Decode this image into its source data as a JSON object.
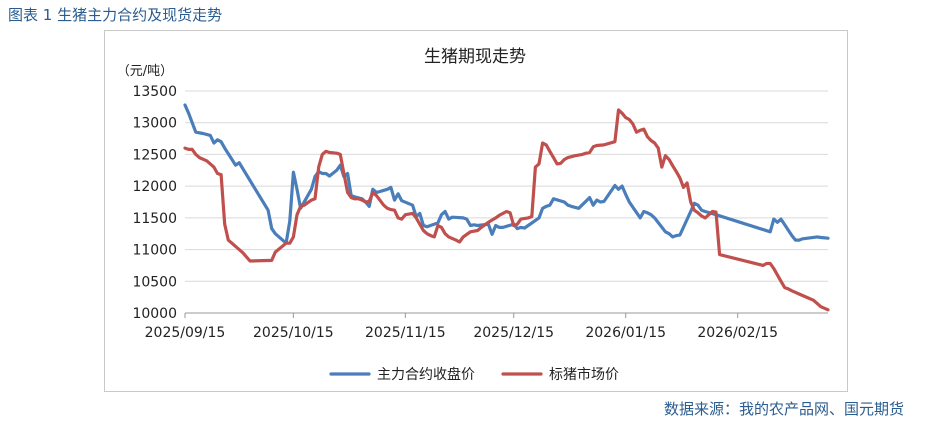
{
  "figure_title": "图表 1 生猪主力合约及现货走势",
  "source": "数据来源：我的农产品网、国元期货",
  "chart_data": {
    "type": "line",
    "title": "生猪期现走势",
    "ylabel": "（元/吨）",
    "xlabel": "",
    "ylim": [
      10000,
      13500
    ],
    "yticks": [
      10000,
      10500,
      11000,
      11500,
      12000,
      12500,
      13000,
      13500
    ],
    "xlim": [
      "2025-09-15",
      "2026-03-12"
    ],
    "xticks": [
      "2025/09/15",
      "2025/10/15",
      "2025/11/15",
      "2025/12/15",
      "2026/01/15",
      "2026/02/15"
    ],
    "grid": "horizontal",
    "legend_position": "bottom",
    "series": [
      {
        "name": "主力合约收盘价",
        "color": "#4a7ebb",
        "points": [
          [
            "2025-09-15",
            13280
          ],
          [
            "2025-09-16",
            13150
          ],
          [
            "2025-09-18",
            12850
          ],
          [
            "2025-09-20",
            12830
          ],
          [
            "2025-09-22",
            12800
          ],
          [
            "2025-09-23",
            12680
          ],
          [
            "2025-09-24",
            12730
          ],
          [
            "2025-09-25",
            12700
          ],
          [
            "2025-09-26",
            12600
          ],
          [
            "2025-09-29",
            12330
          ],
          [
            "2025-09-30",
            12370
          ],
          [
            "2025-10-08",
            11620
          ],
          [
            "2025-10-09",
            11330
          ],
          [
            "2025-10-10",
            11250
          ],
          [
            "2025-10-13",
            11100
          ],
          [
            "2025-10-14",
            11450
          ],
          [
            "2025-10-15",
            12220
          ],
          [
            "2025-10-16",
            11950
          ],
          [
            "2025-10-17",
            11650
          ],
          [
            "2025-10-20",
            11950
          ],
          [
            "2025-10-21",
            12150
          ],
          [
            "2025-10-22",
            12230
          ],
          [
            "2025-10-23",
            12200
          ],
          [
            "2025-10-24",
            12200
          ],
          [
            "2025-10-25",
            12160
          ],
          [
            "2025-10-27",
            12250
          ],
          [
            "2025-10-28",
            12330
          ],
          [
            "2025-10-29",
            12150
          ],
          [
            "2025-10-30",
            12200
          ],
          [
            "2025-10-31",
            11850
          ],
          [
            "2025-11-01",
            11830
          ],
          [
            "2025-11-03",
            11800
          ],
          [
            "2025-11-04",
            11750
          ],
          [
            "2025-11-05",
            11680
          ],
          [
            "2025-11-06",
            11950
          ],
          [
            "2025-11-07",
            11900
          ],
          [
            "2025-11-10",
            11950
          ],
          [
            "2025-11-11",
            11980
          ],
          [
            "2025-11-12",
            11780
          ],
          [
            "2025-11-13",
            11880
          ],
          [
            "2025-11-14",
            11770
          ],
          [
            "2025-11-17",
            11700
          ],
          [
            "2025-11-18",
            11520
          ],
          [
            "2025-11-19",
            11570
          ],
          [
            "2025-11-20",
            11380
          ],
          [
            "2025-11-21",
            11360
          ],
          [
            "2025-11-24",
            11420
          ],
          [
            "2025-11-25",
            11550
          ],
          [
            "2025-11-26",
            11600
          ],
          [
            "2025-11-27",
            11480
          ],
          [
            "2025-11-28",
            11510
          ],
          [
            "2025-12-01",
            11500
          ],
          [
            "2025-12-02",
            11480
          ],
          [
            "2025-12-03",
            11380
          ],
          [
            "2025-12-04",
            11390
          ],
          [
            "2025-12-05",
            11380
          ],
          [
            "2025-12-08",
            11400
          ],
          [
            "2025-12-09",
            11240
          ],
          [
            "2025-12-10",
            11380
          ],
          [
            "2025-12-11",
            11350
          ],
          [
            "2025-12-12",
            11350
          ],
          [
            "2025-12-15",
            11400
          ],
          [
            "2025-12-16",
            11330
          ],
          [
            "2025-12-17",
            11350
          ],
          [
            "2025-12-18",
            11340
          ],
          [
            "2025-12-19",
            11380
          ],
          [
            "2025-12-22",
            11500
          ],
          [
            "2025-12-23",
            11650
          ],
          [
            "2025-12-24",
            11680
          ],
          [
            "2025-12-25",
            11700
          ],
          [
            "2025-12-26",
            11800
          ],
          [
            "2025-12-29",
            11750
          ],
          [
            "2025-12-30",
            11700
          ],
          [
            "2025-12-31",
            11680
          ],
          [
            "2026-01-02",
            11650
          ],
          [
            "2026-01-05",
            11820
          ],
          [
            "2026-01-06",
            11700
          ],
          [
            "2026-01-07",
            11780
          ],
          [
            "2026-01-08",
            11750
          ],
          [
            "2026-01-09",
            11760
          ],
          [
            "2026-01-12",
            12010
          ],
          [
            "2026-01-13",
            11950
          ],
          [
            "2026-01-14",
            12000
          ],
          [
            "2026-01-15",
            11870
          ],
          [
            "2026-01-16",
            11750
          ],
          [
            "2026-01-19",
            11500
          ],
          [
            "2026-01-20",
            11600
          ],
          [
            "2026-01-21",
            11580
          ],
          [
            "2026-01-22",
            11550
          ],
          [
            "2026-01-23",
            11500
          ],
          [
            "2026-01-26",
            11280
          ],
          [
            "2026-01-27",
            11250
          ],
          [
            "2026-01-28",
            11200
          ],
          [
            "2026-01-29",
            11220
          ],
          [
            "2026-01-30",
            11230
          ],
          [
            "2026-02-02",
            11600
          ],
          [
            "2026-02-03",
            11730
          ],
          [
            "2026-02-04",
            11700
          ],
          [
            "2026-02-05",
            11620
          ],
          [
            "2026-02-06",
            11600
          ],
          [
            "2026-02-09",
            11550
          ],
          [
            "2026-02-24",
            11280
          ],
          [
            "2026-02-25",
            11480
          ],
          [
            "2026-02-26",
            11430
          ],
          [
            "2026-02-27",
            11480
          ],
          [
            "2026-03-02",
            11220
          ],
          [
            "2026-03-03",
            11150
          ],
          [
            "2026-03-04",
            11150
          ],
          [
            "2026-03-05",
            11170
          ],
          [
            "2026-03-09",
            11200
          ],
          [
            "2026-03-10",
            11190
          ],
          [
            "2026-03-12",
            11180
          ]
        ]
      },
      {
        "name": "标猪市场价",
        "color": "#c0504d",
        "points": [
          [
            "2025-09-15",
            12600
          ],
          [
            "2025-09-16",
            12580
          ],
          [
            "2025-09-17",
            12580
          ],
          [
            "2025-09-18",
            12500
          ],
          [
            "2025-09-19",
            12450
          ],
          [
            "2025-09-21",
            12400
          ],
          [
            "2025-09-23",
            12300
          ],
          [
            "2025-09-24",
            12200
          ],
          [
            "2025-09-25",
            12180
          ],
          [
            "2025-09-26",
            11400
          ],
          [
            "2025-09-27",
            11150
          ],
          [
            "2025-09-30",
            11000
          ],
          [
            "2025-10-01",
            10950
          ],
          [
            "2025-10-03",
            10820
          ],
          [
            "2025-10-09",
            10830
          ],
          [
            "2025-10-10",
            10960
          ],
          [
            "2025-10-13",
            11100
          ],
          [
            "2025-10-14",
            11100
          ],
          [
            "2025-10-15",
            11200
          ],
          [
            "2025-10-16",
            11550
          ],
          [
            "2025-10-17",
            11680
          ],
          [
            "2025-10-18",
            11700
          ],
          [
            "2025-10-20",
            11780
          ],
          [
            "2025-10-21",
            11800
          ],
          [
            "2025-10-22",
            12300
          ],
          [
            "2025-10-23",
            12500
          ],
          [
            "2025-10-24",
            12550
          ],
          [
            "2025-10-25",
            12530
          ],
          [
            "2025-10-27",
            12520
          ],
          [
            "2025-10-28",
            12500
          ],
          [
            "2025-10-29",
            12200
          ],
          [
            "2025-10-30",
            11900
          ],
          [
            "2025-10-31",
            11820
          ],
          [
            "2025-11-01",
            11800
          ],
          [
            "2025-11-02",
            11800
          ],
          [
            "2025-11-03",
            11780
          ],
          [
            "2025-11-04",
            11750
          ],
          [
            "2025-11-05",
            11760
          ],
          [
            "2025-11-06",
            11900
          ],
          [
            "2025-11-07",
            11850
          ],
          [
            "2025-11-09",
            11700
          ],
          [
            "2025-11-10",
            11650
          ],
          [
            "2025-11-11",
            11630
          ],
          [
            "2025-11-12",
            11620
          ],
          [
            "2025-11-13",
            11500
          ],
          [
            "2025-11-14",
            11480
          ],
          [
            "2025-11-15",
            11550
          ],
          [
            "2025-11-17",
            11570
          ],
          [
            "2025-11-18",
            11500
          ],
          [
            "2025-11-20",
            11300
          ],
          [
            "2025-11-21",
            11250
          ],
          [
            "2025-11-22",
            11220
          ],
          [
            "2025-11-23",
            11200
          ],
          [
            "2025-11-24",
            11380
          ],
          [
            "2025-11-25",
            11350
          ],
          [
            "2025-11-26",
            11250
          ],
          [
            "2025-11-27",
            11200
          ],
          [
            "2025-11-29",
            11150
          ],
          [
            "2025-11-30",
            11120
          ],
          [
            "2025-12-01",
            11200
          ],
          [
            "2025-12-03",
            11280
          ],
          [
            "2025-12-05",
            11300
          ],
          [
            "2025-12-06",
            11350
          ],
          [
            "2025-12-08",
            11430
          ],
          [
            "2025-12-10",
            11500
          ],
          [
            "2025-12-11",
            11540
          ],
          [
            "2025-12-13",
            11600
          ],
          [
            "2025-12-14",
            11580
          ],
          [
            "2025-12-15",
            11380
          ],
          [
            "2025-12-16",
            11400
          ],
          [
            "2025-12-17",
            11480
          ],
          [
            "2025-12-19",
            11500
          ],
          [
            "2025-12-20",
            11520
          ],
          [
            "2025-12-21",
            12300
          ],
          [
            "2025-12-22",
            12350
          ],
          [
            "2025-12-23",
            12680
          ],
          [
            "2025-12-24",
            12650
          ],
          [
            "2025-12-25",
            12550
          ],
          [
            "2025-12-26",
            12450
          ],
          [
            "2025-12-27",
            12350
          ],
          [
            "2025-12-28",
            12360
          ],
          [
            "2025-12-29",
            12420
          ],
          [
            "2025-12-30",
            12450
          ],
          [
            "2026-01-01",
            12480
          ],
          [
            "2026-01-03",
            12500
          ],
          [
            "2026-01-04",
            12520
          ],
          [
            "2026-01-05",
            12530
          ],
          [
            "2026-01-06",
            12620
          ],
          [
            "2026-01-07",
            12640
          ],
          [
            "2026-01-09",
            12650
          ],
          [
            "2026-01-12",
            12700
          ],
          [
            "2026-01-13",
            13200
          ],
          [
            "2026-01-14",
            13150
          ],
          [
            "2026-01-15",
            13080
          ],
          [
            "2026-01-16",
            13050
          ],
          [
            "2026-01-17",
            12980
          ],
          [
            "2026-01-18",
            12850
          ],
          [
            "2026-01-19",
            12880
          ],
          [
            "2026-01-20",
            12900
          ],
          [
            "2026-01-21",
            12780
          ],
          [
            "2026-01-22",
            12720
          ],
          [
            "2026-01-23",
            12680
          ],
          [
            "2026-01-24",
            12600
          ],
          [
            "2026-01-25",
            12300
          ],
          [
            "2026-01-26",
            12480
          ],
          [
            "2026-01-27",
            12420
          ],
          [
            "2026-01-28",
            12320
          ],
          [
            "2026-01-29",
            12230
          ],
          [
            "2026-01-30",
            12130
          ],
          [
            "2026-01-31",
            11980
          ],
          [
            "2026-02-01",
            12050
          ],
          [
            "2026-02-02",
            11750
          ],
          [
            "2026-02-03",
            11620
          ],
          [
            "2026-02-04",
            11580
          ],
          [
            "2026-02-05",
            11530
          ],
          [
            "2026-02-06",
            11500
          ],
          [
            "2026-02-07",
            11550
          ],
          [
            "2026-02-08",
            11600
          ],
          [
            "2026-02-09",
            11590
          ],
          [
            "2026-02-10",
            10920
          ],
          [
            "2026-02-22",
            10750
          ],
          [
            "2026-02-23",
            10780
          ],
          [
            "2026-02-24",
            10780
          ],
          [
            "2026-02-25",
            10700
          ],
          [
            "2026-02-26",
            10600
          ],
          [
            "2026-02-27",
            10500
          ],
          [
            "2026-02-28",
            10400
          ],
          [
            "2026-03-01",
            10380
          ],
          [
            "2026-03-02",
            10350
          ],
          [
            "2026-03-04",
            10300
          ],
          [
            "2026-03-06",
            10250
          ],
          [
            "2026-03-08",
            10200
          ],
          [
            "2026-03-10",
            10100
          ],
          [
            "2026-03-12",
            10050
          ]
        ]
      }
    ]
  }
}
